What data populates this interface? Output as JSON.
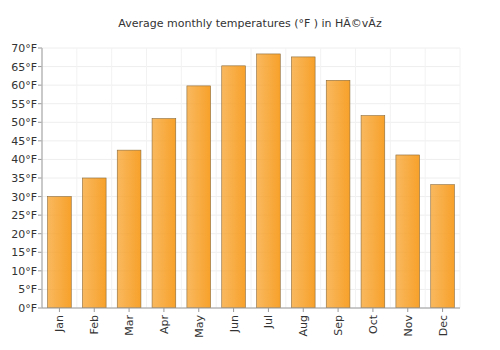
{
  "chart_data": {
    "type": "bar",
    "title": "Average monthly temperatures (°F ) in HÃ©vÃ­z",
    "categories": [
      "Jan",
      "Feb",
      "Mar",
      "Apr",
      "May",
      "Jun",
      "Jul",
      "Aug",
      "Sep",
      "Oct",
      "Nov",
      "Dec"
    ],
    "values": [
      30,
      35,
      42.5,
      51,
      59.8,
      65.2,
      68.4,
      67.6,
      61.3,
      51.8,
      41.2,
      33.2
    ],
    "color": "#f7a12a",
    "ylim": [
      0,
      70
    ],
    "yticks": [
      {
        "value": 0,
        "label": "0°F"
      },
      {
        "value": 5,
        "label": "5°F"
      },
      {
        "value": 10,
        "label": "10°F"
      },
      {
        "value": 15,
        "label": "15°F"
      },
      {
        "value": 20,
        "label": "20°F"
      },
      {
        "value": 25,
        "label": "25°F"
      },
      {
        "value": 30,
        "label": "30°F"
      },
      {
        "value": 35,
        "label": "35°F"
      },
      {
        "value": 40,
        "label": "40°F"
      },
      {
        "value": 45,
        "label": "45°F"
      },
      {
        "value": 50,
        "label": "50°F"
      },
      {
        "value": 55,
        "label": "55°F"
      },
      {
        "value": 60,
        "label": "60°F"
      },
      {
        "value": 65,
        "label": "65°F"
      },
      {
        "value": 70,
        "label": "70°F"
      }
    ],
    "grid": true
  }
}
